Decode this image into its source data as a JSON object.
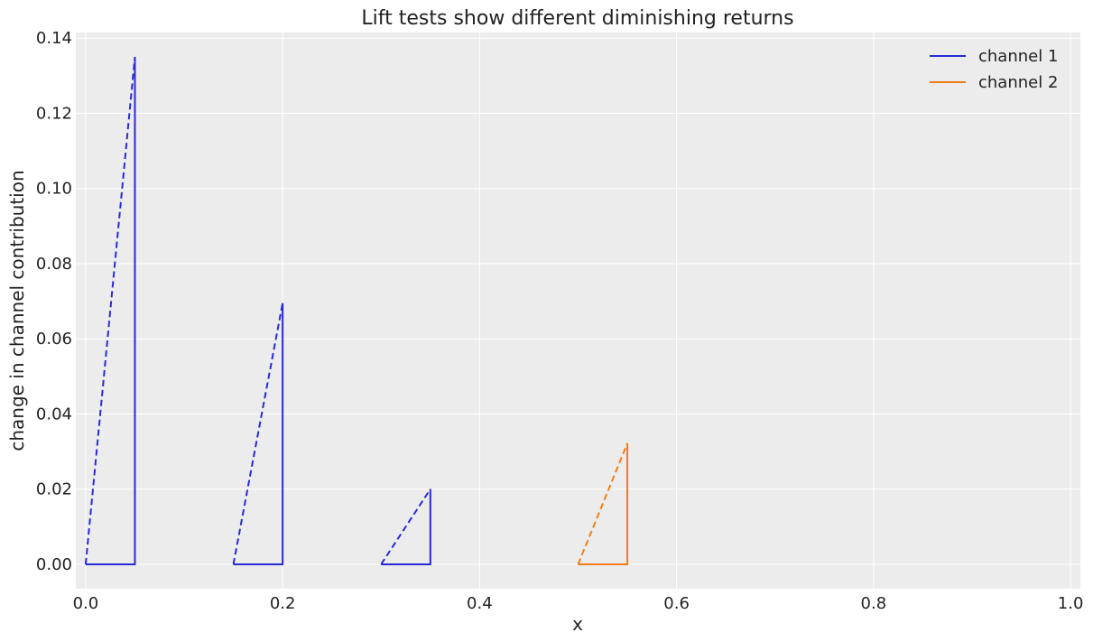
{
  "chart_data": {
    "type": "line",
    "title": "Lift tests show different diminishing returns",
    "xlabel": "x",
    "ylabel": "change in channel contribution",
    "xlim": [
      -0.01,
      1.01
    ],
    "ylim": [
      -0.0065,
      0.1415
    ],
    "xticks": [
      0.0,
      0.2,
      0.4,
      0.6,
      0.8,
      1.0
    ],
    "xtick_labels": [
      "0.0",
      "0.2",
      "0.4",
      "0.6",
      "0.8",
      "1.0"
    ],
    "yticks": [
      0.0,
      0.02,
      0.04,
      0.06,
      0.08,
      0.1,
      0.12,
      0.14
    ],
    "ytick_labels": [
      "0.00",
      "0.02",
      "0.04",
      "0.06",
      "0.08",
      "0.10",
      "0.12",
      "0.14"
    ],
    "grid": true,
    "legend_position": "top-right",
    "series": [
      {
        "name": "channel 1",
        "color": "#2a2ad8",
        "lift_tests": [
          {
            "x": 0.0,
            "delta_x": 0.05,
            "delta_y": 0.135
          },
          {
            "x": 0.15,
            "delta_x": 0.05,
            "delta_y": 0.0695
          },
          {
            "x": 0.3,
            "delta_x": 0.05,
            "delta_y": 0.02
          }
        ]
      },
      {
        "name": "channel 2",
        "color": "#f07d1a",
        "lift_tests": [
          {
            "x": 0.5,
            "delta_x": 0.05,
            "delta_y": 0.0322
          }
        ]
      }
    ]
  }
}
